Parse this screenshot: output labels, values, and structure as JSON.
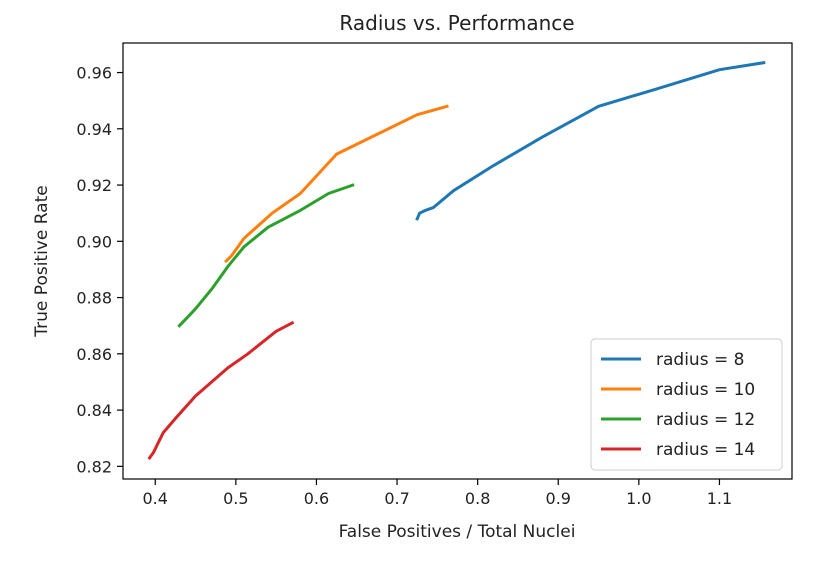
{
  "chart_data": {
    "type": "line",
    "title": "Radius vs. Performance",
    "xlabel": "False Positives / Total Nuclei",
    "ylabel": "True Positive Rate",
    "xlim": [
      0.36,
      1.19
    ],
    "ylim": [
      0.8155,
      0.9705
    ],
    "xticks": [
      0.4,
      0.5,
      0.6,
      0.7,
      0.8,
      0.9,
      1.0,
      1.1
    ],
    "xtick_labels": [
      "0.4",
      "0.5",
      "0.6",
      "0.7",
      "0.8",
      "0.9",
      "1.0",
      "1.1"
    ],
    "yticks": [
      0.82,
      0.84,
      0.86,
      0.88,
      0.9,
      0.92,
      0.94,
      0.96
    ],
    "ytick_labels": [
      "0.82",
      "0.84",
      "0.86",
      "0.88",
      "0.90",
      "0.92",
      "0.94",
      "0.96"
    ],
    "grid": false,
    "legend_position": "lower-right",
    "series": [
      {
        "name": "radius = 8",
        "color": "#1f77b4",
        "x": [
          0.725,
          0.728,
          0.735,
          0.745,
          0.77,
          0.82,
          0.88,
          0.95,
          1.02,
          1.1,
          1.155
        ],
        "y": [
          0.908,
          0.91,
          0.911,
          0.912,
          0.918,
          0.927,
          0.937,
          0.948,
          0.954,
          0.961,
          0.9635
        ]
      },
      {
        "name": "radius = 10",
        "color": "#ff7f0e",
        "x": [
          0.488,
          0.495,
          0.51,
          0.545,
          0.58,
          0.625,
          0.675,
          0.725,
          0.762
        ],
        "y": [
          0.893,
          0.895,
          0.901,
          0.91,
          0.917,
          0.931,
          0.938,
          0.945,
          0.948
        ]
      },
      {
        "name": "radius = 12",
        "color": "#2ca02c",
        "x": [
          0.43,
          0.44,
          0.45,
          0.47,
          0.49,
          0.51,
          0.54,
          0.58,
          0.615,
          0.645
        ],
        "y": [
          0.87,
          0.873,
          0.876,
          0.883,
          0.891,
          0.898,
          0.905,
          0.911,
          0.917,
          0.92
        ]
      },
      {
        "name": "radius = 14",
        "color": "#d62728",
        "x": [
          0.393,
          0.398,
          0.403,
          0.41,
          0.425,
          0.45,
          0.49,
          0.515,
          0.55,
          0.57
        ],
        "y": [
          0.823,
          0.825,
          0.828,
          0.832,
          0.837,
          0.845,
          0.855,
          0.86,
          0.868,
          0.871
        ]
      }
    ]
  }
}
